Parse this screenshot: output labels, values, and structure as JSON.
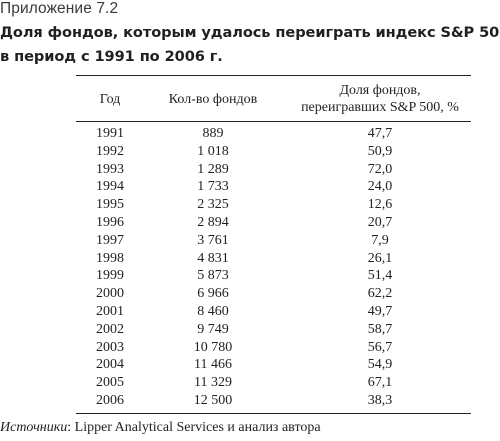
{
  "appendix_label": "Приложение 7.2",
  "title": {
    "line1": "Доля фондов, которым удалось переиграть индекс S&P 500",
    "line2": "в период с 1991 по 2006 г."
  },
  "table": {
    "headers": {
      "year": "Год",
      "count": "Кол-во фондов",
      "share_line1": "Доля фондов,",
      "share_line2": "переигравших S&P 500, %"
    },
    "rows": [
      {
        "year": "1991",
        "count": "889",
        "share": "47,7"
      },
      {
        "year": "1992",
        "count": "1 018",
        "share": "50,9"
      },
      {
        "year": "1993",
        "count": "1 289",
        "share": "72,0"
      },
      {
        "year": "1994",
        "count": "1 733",
        "share": "24,0"
      },
      {
        "year": "1995",
        "count": "2 325",
        "share": "12,6"
      },
      {
        "year": "1996",
        "count": "2 894",
        "share": "20,7"
      },
      {
        "year": "1997",
        "count": "3 761",
        "share": "7,9"
      },
      {
        "year": "1998",
        "count": "4 831",
        "share": "26,1"
      },
      {
        "year": "1999",
        "count": "5 873",
        "share": "51,4"
      },
      {
        "year": "2000",
        "count": "6 966",
        "share": "62,2"
      },
      {
        "year": "2001",
        "count": "8 460",
        "share": "49,7"
      },
      {
        "year": "2002",
        "count": "9 749",
        "share": "58,7"
      },
      {
        "year": "2003",
        "count": "10 780",
        "share": "56,7"
      },
      {
        "year": "2004",
        "count": "11 466",
        "share": "54,9"
      },
      {
        "year": "2005",
        "count": "11 329",
        "share": "67,1"
      },
      {
        "year": "2006",
        "count": "12 500",
        "share": "38,3"
      }
    ]
  },
  "source": {
    "label": "Источники",
    "text": ": Lipper Analytical Services и анализ автора"
  }
}
